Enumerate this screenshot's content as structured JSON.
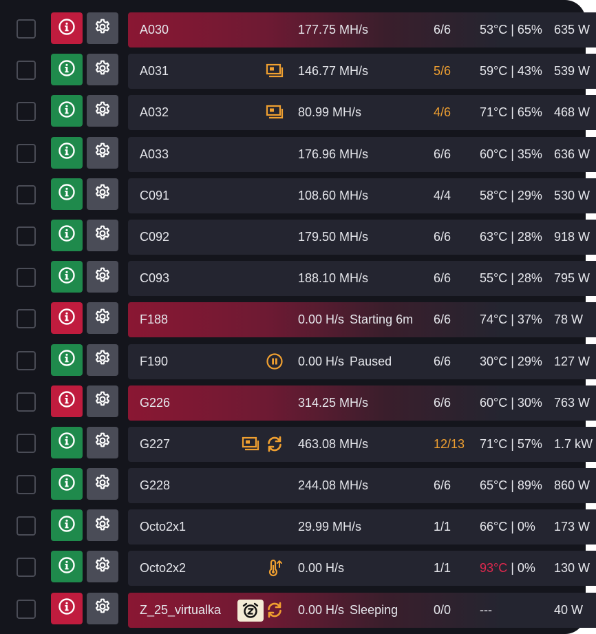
{
  "colors": {
    "background": "#14151c",
    "card": "#242530",
    "info_ok": "#1f8a4c",
    "info_error": "#c01c3e",
    "settings_button": "#4a4c57",
    "warning_text": "#f0a030",
    "critical_text": "#e0284e"
  },
  "rigs": [
    {
      "name": "A030",
      "hashrate": "177.75 MH/s",
      "status": "",
      "gpus": "6/6",
      "gpus_warn": false,
      "temp": "53°C",
      "temp_hot": false,
      "fan": " | 65%",
      "power": "635 W",
      "health": "error",
      "icons": []
    },
    {
      "name": "A031",
      "hashrate": "146.77 MH/s",
      "status": "",
      "gpus": "5/6",
      "gpus_warn": true,
      "temp": "59°C",
      "temp_hot": false,
      "fan": " | 43%",
      "power": "539 W",
      "health": "ok",
      "icons": [
        "monitor-warning-icon"
      ]
    },
    {
      "name": "A032",
      "hashrate": "80.99 MH/s",
      "status": "",
      "gpus": "4/6",
      "gpus_warn": true,
      "temp": "71°C",
      "temp_hot": false,
      "fan": " | 65%",
      "power": "468 W",
      "health": "ok",
      "icons": [
        "monitor-warning-icon"
      ]
    },
    {
      "name": "A033",
      "hashrate": "176.96 MH/s",
      "status": "",
      "gpus": "6/6",
      "gpus_warn": false,
      "temp": "60°C",
      "temp_hot": false,
      "fan": " | 35%",
      "power": "636 W",
      "health": "ok",
      "icons": []
    },
    {
      "name": "C091",
      "hashrate": "108.60 MH/s",
      "status": "",
      "gpus": "4/4",
      "gpus_warn": false,
      "temp": "58°C",
      "temp_hot": false,
      "fan": " | 29%",
      "power": "530 W",
      "health": "ok",
      "icons": []
    },
    {
      "name": "C092",
      "hashrate": "179.50 MH/s",
      "status": "",
      "gpus": "6/6",
      "gpus_warn": false,
      "temp": "63°C",
      "temp_hot": false,
      "fan": " | 28%",
      "power": "918 W",
      "health": "ok",
      "icons": []
    },
    {
      "name": "C093",
      "hashrate": "188.10 MH/s",
      "status": "",
      "gpus": "6/6",
      "gpus_warn": false,
      "temp": "55°C",
      "temp_hot": false,
      "fan": " | 28%",
      "power": "795 W",
      "health": "ok",
      "icons": []
    },
    {
      "name": "F188",
      "hashrate": "0.00 H/s",
      "status": "Starting 6m",
      "gpus": "6/6",
      "gpus_warn": false,
      "temp": "74°C",
      "temp_hot": false,
      "fan": " | 37%",
      "power": "78 W",
      "health": "error",
      "icons": []
    },
    {
      "name": "F190",
      "hashrate": "0.00 H/s",
      "status": "Paused",
      "gpus": "6/6",
      "gpus_warn": false,
      "temp": "30°C",
      "temp_hot": false,
      "fan": " | 29%",
      "power": "127 W",
      "health": "ok",
      "icons": [
        "pause-icon"
      ]
    },
    {
      "name": "G226",
      "hashrate": "314.25 MH/s",
      "status": "",
      "gpus": "6/6",
      "gpus_warn": false,
      "temp": "60°C",
      "temp_hot": false,
      "fan": " | 30%",
      "power": "763 W",
      "health": "error",
      "icons": []
    },
    {
      "name": "G227",
      "hashrate": "463.08 MH/s",
      "status": "",
      "gpus": "12/13",
      "gpus_warn": true,
      "temp": "71°C",
      "temp_hot": false,
      "fan": " | 57%",
      "power": "1.7 kW",
      "health": "ok",
      "icons": [
        "monitor-warning-icon",
        "refresh-icon"
      ]
    },
    {
      "name": "G228",
      "hashrate": "244.08 MH/s",
      "status": "",
      "gpus": "6/6",
      "gpus_warn": false,
      "temp": "65°C",
      "temp_hot": false,
      "fan": " | 89%",
      "power": "860 W",
      "health": "ok",
      "icons": []
    },
    {
      "name": "Octo2x1",
      "hashrate": "29.99 MH/s",
      "status": "",
      "gpus": "1/1",
      "gpus_warn": false,
      "temp": "66°C",
      "temp_hot": false,
      "fan": " | 0%",
      "power": "173 W",
      "health": "ok",
      "icons": []
    },
    {
      "name": "Octo2x2",
      "hashrate": "0.00 H/s",
      "status": "",
      "gpus": "1/1",
      "gpus_warn": false,
      "temp": "93°C",
      "temp_hot": true,
      "fan": " | 0%",
      "power": "130 W",
      "health": "ok",
      "icons": [
        "thermometer-high-icon"
      ]
    },
    {
      "name": "Z_25_virtualka",
      "hashrate": "0.00 H/s",
      "status": "Sleeping",
      "gpus": "0/0",
      "gpus_warn": false,
      "temp": "---",
      "temp_hot": false,
      "fan": "",
      "power": "40 W",
      "health": "error",
      "icons": [
        "sleep-alarm-icon",
        "refresh-icon"
      ]
    }
  ]
}
